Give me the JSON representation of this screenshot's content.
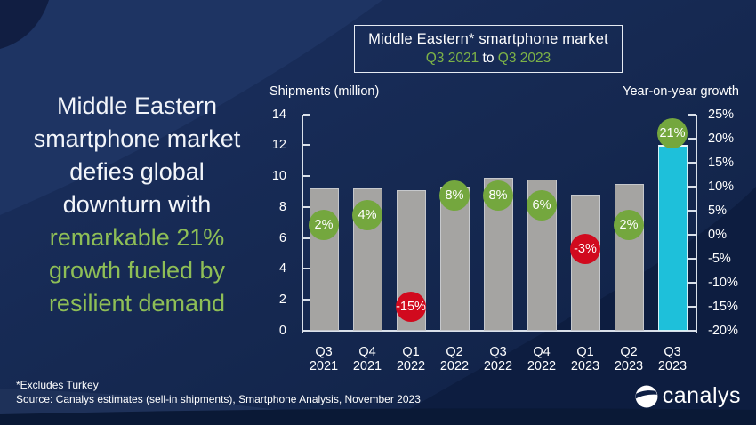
{
  "title_box": {
    "line1": "Middle Eastern* smartphone market",
    "range_start": "Q3 2021",
    "range_connector": " to ",
    "range_end": "Q3 2023"
  },
  "headline": {
    "lines": [
      {
        "text": "Middle Eastern",
        "color": "white"
      },
      {
        "text": "smartphone market",
        "color": "white"
      },
      {
        "text": "defies global",
        "color": "white"
      },
      {
        "text": "downturn with",
        "color": "white"
      },
      {
        "text": "remarkable 21%",
        "color": "green"
      },
      {
        "text": "growth fueled by",
        "color": "green"
      },
      {
        "text": "resilient demand",
        "color": "green"
      }
    ]
  },
  "footnote": "*Excludes Turkey",
  "source": "Source: Canalys estimates (sell-in shipments), Smartphone Analysis, November 2023",
  "logo_text": "canalys",
  "colors": {
    "background": "#15284f",
    "badge_green": "#74a73e",
    "badge_red": "#d10a1e",
    "bar_gray": "#a5a4a2",
    "bar_cyan": "#1ec0da",
    "text_green": "#8ebe56",
    "title_green": "#7cb247"
  },
  "chart_data": {
    "type": "bar",
    "title": "Middle Eastern* smartphone market Q3 2021 to Q3 2023",
    "categories": [
      "Q3 2021",
      "Q4 2021",
      "Q1 2022",
      "Q2 2022",
      "Q3 2022",
      "Q4 2022",
      "Q1 2023",
      "Q2 2023",
      "Q3 2023"
    ],
    "series": [
      {
        "name": "Shipments (million)",
        "type": "bar",
        "values": [
          9.2,
          9.2,
          9.1,
          9.3,
          9.9,
          9.8,
          8.8,
          9.5,
          12.0
        ]
      },
      {
        "name": "Year-on-year growth",
        "type": "point-label",
        "unit": "%",
        "values": [
          2,
          4,
          -15,
          8,
          8,
          6,
          -3,
          2,
          21
        ]
      }
    ],
    "highlight_index": 8,
    "ylabel_left": "Shipments (million)",
    "ylabel_right": "Year-on-year growth",
    "ylim_left": [
      0,
      14
    ],
    "yticks_left": [
      0,
      2,
      4,
      6,
      8,
      10,
      12,
      14
    ],
    "ylim_right": [
      -20,
      25
    ],
    "yticks_right": [
      -20,
      -15,
      -10,
      -5,
      0,
      5,
      10,
      15,
      20,
      25
    ],
    "grid": false,
    "legend": "none"
  }
}
